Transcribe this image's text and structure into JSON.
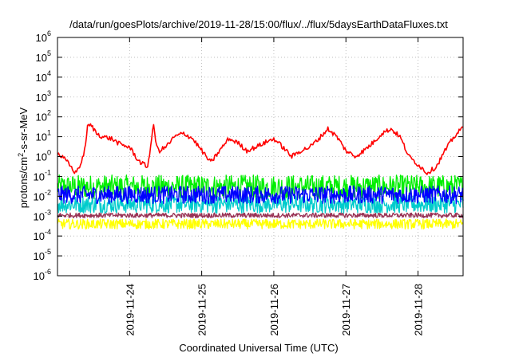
{
  "chart_data": {
    "type": "line",
    "title": "/data/run/goesPlots/archive/2019-11-28/15:00/flux/../flux/5daysEarthDataFluxes.txt",
    "xlabel": "Coordinated Universal Time (UTC)",
    "ylabel": "protons/cm2-s-sr-MeV",
    "ylabel_parts": {
      "a": "protons/cm",
      "sup": "2",
      "b": "-s-sr-MeV"
    },
    "y_scale": "log",
    "ylim": [
      1e-06,
      1000000
    ],
    "y_ticks": [
      {
        "base": "10",
        "exp": "-6"
      },
      {
        "base": "10",
        "exp": "-5"
      },
      {
        "base": "10",
        "exp": "-4"
      },
      {
        "base": "10",
        "exp": "-3"
      },
      {
        "base": "10",
        "exp": "-2"
      },
      {
        "base": "10",
        "exp": "-1"
      },
      {
        "base": "10",
        "exp": "0"
      },
      {
        "base": "10",
        "exp": "1"
      },
      {
        "base": "10",
        "exp": "2"
      },
      {
        "base": "10",
        "exp": "3"
      },
      {
        "base": "10",
        "exp": "4"
      },
      {
        "base": "10",
        "exp": "5"
      },
      {
        "base": "10",
        "exp": "6"
      }
    ],
    "xlim": [
      "2019-11-23 00:00",
      "2019-11-28 15:00"
    ],
    "x_ticks": [
      "2019-11-24",
      "2019-11-25",
      "2019-11-26",
      "2019-11-27",
      "2019-11-28"
    ],
    "grid": true,
    "legend": "none",
    "series": [
      {
        "color": "#ff0000",
        "x": [
          "2019-11-23 00:00",
          "2019-11-23 03:00",
          "2019-11-23 06:00",
          "2019-11-23 08:00",
          "2019-11-23 09:00",
          "2019-11-23 10:00",
          "2019-11-23 11:00",
          "2019-11-23 12:00",
          "2019-11-23 13:00",
          "2019-11-23 15:00",
          "2019-11-23 18:00",
          "2019-11-23 21:00",
          "2019-11-24 00:00",
          "2019-11-24 03:00",
          "2019-11-24 06:00",
          "2019-11-24 08:00",
          "2019-11-24 09:00",
          "2019-11-24 10:00",
          "2019-11-24 12:00",
          "2019-11-24 15:00",
          "2019-11-24 18:00",
          "2019-11-24 21:00",
          "2019-11-25 00:00",
          "2019-11-25 03:00",
          "2019-11-25 06:00",
          "2019-11-25 09:00",
          "2019-11-25 12:00",
          "2019-11-25 15:00",
          "2019-11-25 18:00",
          "2019-11-25 21:00",
          "2019-11-26 00:00",
          "2019-11-26 03:00",
          "2019-11-26 06:00",
          "2019-11-26 09:00",
          "2019-11-26 12:00",
          "2019-11-26 15:00",
          "2019-11-26 18:00",
          "2019-11-26 21:00",
          "2019-11-27 00:00",
          "2019-11-27 03:00",
          "2019-11-27 06:00",
          "2019-11-27 09:00",
          "2019-11-27 12:00",
          "2019-11-27 15:00",
          "2019-11-27 18:00",
          "2019-11-27 21:00",
          "2019-11-28 00:00",
          "2019-11-28 03:00",
          "2019-11-28 06:00",
          "2019-11-28 09:00",
          "2019-11-28 12:00",
          "2019-11-28 15:00"
        ],
        "y": [
          1.5,
          0.6,
          0.15,
          0.5,
          2,
          30,
          40,
          25,
          15,
          10,
          8,
          4,
          3,
          0.6,
          0.3,
          40,
          3,
          2,
          3,
          10,
          15,
          8,
          2,
          0.5,
          2,
          8,
          5,
          2,
          3,
          5,
          8,
          3,
          1,
          2,
          3,
          8,
          25,
          10,
          2,
          1,
          2,
          5,
          15,
          25,
          10,
          1,
          0.4,
          0.15,
          0.3,
          2,
          10,
          30
        ],
        "noise": 0.12
      },
      {
        "color": "#00ee00",
        "y_constant": 0.03,
        "noise": 0.6
      },
      {
        "color": "#00cccc",
        "y_constant": 0.004,
        "noise": 0.45
      },
      {
        "color": "#0000ff",
        "y_constant": 0.012,
        "noise": 0.45
      },
      {
        "color": "#ffff00",
        "y_constant": 0.0004,
        "noise": 0.25
      },
      {
        "color": "#993355",
        "y_constant": 0.0011,
        "noise": 0.12
      }
    ]
  }
}
